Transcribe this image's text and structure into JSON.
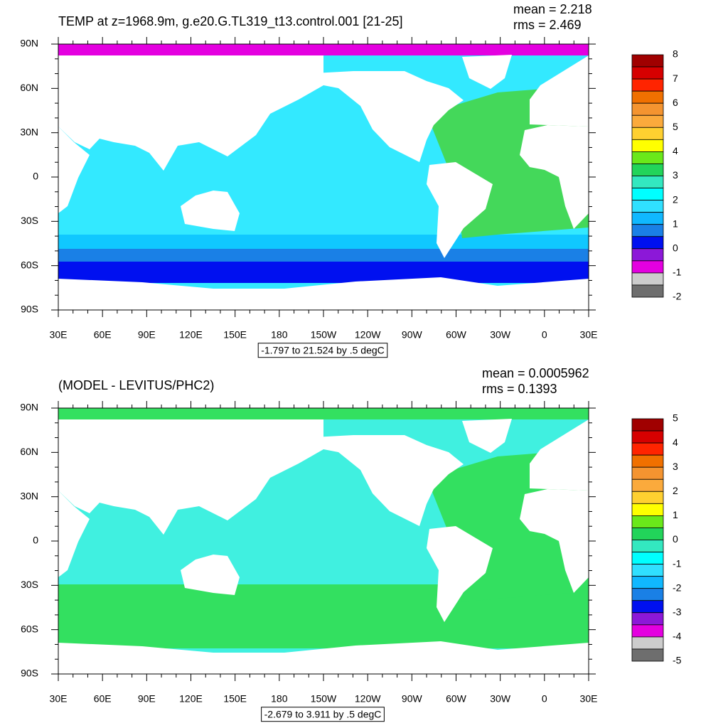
{
  "panels": [
    {
      "title": "TEMP at z=1968.9m, g.e20.G.TL319_t13.control.001 [21-25]",
      "mean": "mean = 2.218",
      "rms": "rms = 2.469",
      "range": "-1.797 to 21.524 by .5 degC",
      "colorbar": {
        "levels": [
          8,
          7,
          6,
          5,
          4,
          3,
          2,
          1,
          0,
          -1,
          -2
        ],
        "colors": [
          "#a00000",
          "#d60000",
          "#ff2400",
          "#f07000",
          "#f49430",
          "#fbaa3c",
          "#ffd030",
          "#ffff00",
          "#6ae81a",
          "#22d45a",
          "#33e8c0",
          "#00ffff",
          "#30e0ff",
          "#10b8ff",
          "#1a80e6",
          "#0010f0",
          "#8c18d8",
          "#e400e0",
          "#cccccc",
          "#6e6e6e"
        ]
      }
    },
    {
      "title": "(MODEL - LEVITUS/PHC2)",
      "mean": "mean = 0.0005962",
      "rms": "rms = 0.1393",
      "range": "-2.679 to 3.911 by .5 degC",
      "colorbar": {
        "levels": [
          5,
          4,
          3,
          2,
          1,
          0,
          -1,
          -2,
          -3,
          -4,
          -5
        ],
        "colors": [
          "#a00000",
          "#d60000",
          "#ff2400",
          "#f07000",
          "#f49430",
          "#fbaa3c",
          "#ffd030",
          "#ffff00",
          "#6ae81a",
          "#22d45a",
          "#33e8c0",
          "#00ffff",
          "#30e0ff",
          "#10b8ff",
          "#1a80e6",
          "#0010f0",
          "#8c18d8",
          "#e400e0",
          "#cccccc",
          "#6e6e6e"
        ]
      }
    }
  ],
  "lon_labels": [
    "30E",
    "60E",
    "90E",
    "120E",
    "150E",
    "180",
    "150W",
    "120W",
    "90W",
    "60W",
    "30W",
    "0",
    "30E"
  ],
  "lat_labels": [
    "90N",
    "60N",
    "30N",
    "0",
    "30S",
    "60S",
    "90S"
  ]
}
